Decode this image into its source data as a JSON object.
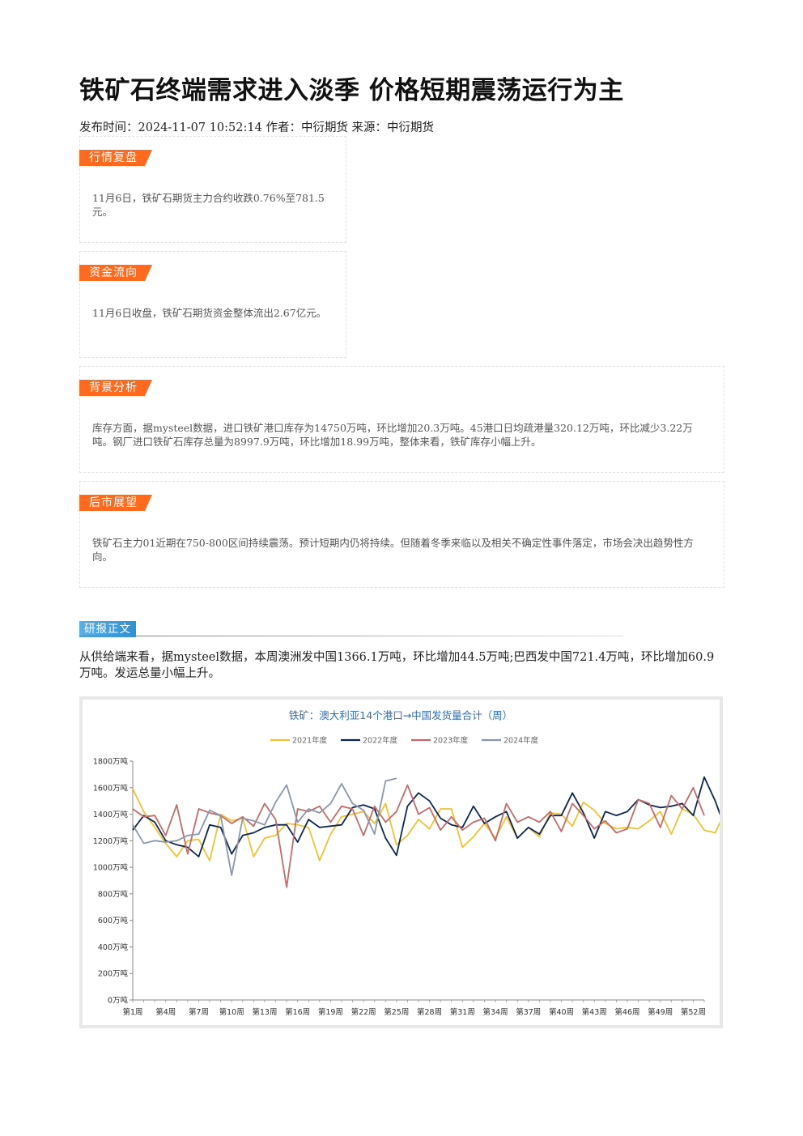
{
  "article": {
    "title": "铁矿石终端需求进入淡季 价格短期震荡运行为主",
    "meta": "发布时间：2024-11-07 10:52:14 作者：中衍期货 来源：中衍期货"
  },
  "sections": {
    "market": {
      "tag": "行情复盘",
      "text": "11月6日，铁矿石期货主力合约收跌0.76%至781.5元。"
    },
    "fund": {
      "tag": "资金流向",
      "text": "11月6日收盘，铁矿石期货资金整体流出2.67亿元。"
    },
    "background": {
      "tag": "背景分析",
      "text": "库存方面，据mysteel数据，进口铁矿港口库存为14750万吨，环比增加20.3万吨。45港口日均疏港量320.12万吨，环比减少3.22万吨。钢厂进口铁矿石库存总量为8997.9万吨，环比增加18.99万吨，整体来看，铁矿库存小幅上升。"
    },
    "outlook": {
      "tag": "后市展望",
      "text": "铁矿石主力01近期在750-800区间持续震荡。预计短期内仍将持续。但随着冬季来临以及相关不确定性事件落定，市场会决出趋势性方向。"
    }
  },
  "report": {
    "tag": "研报正文",
    "text": "从供给端来看，据mysteel数据，本周澳洲发中国1366.1万吨，环比增加44.5万吨;巴西发中国721.4万吨，环比增加60.9万吨。发运总量小幅上升。"
  },
  "chart_data": {
    "type": "line",
    "title": "铁矿：澳大利亚14个港口→中国发货量合计（周）",
    "yunit": "万吨",
    "ylim": [
      0,
      1800
    ],
    "yticks": [
      "0万吨",
      "200万吨",
      "400万吨",
      "600万吨",
      "800万吨",
      "1000万吨",
      "1200万吨",
      "1400万吨",
      "1600万吨",
      "1800万吨"
    ],
    "ytick_values": [
      0,
      200,
      400,
      600,
      800,
      1000,
      1200,
      1400,
      1600,
      1800
    ],
    "xticks": [
      "第1周",
      "第4周",
      "第7周",
      "第10周",
      "第13周",
      "第16周",
      "第19周",
      "第22周",
      "第25周",
      "第28周",
      "第31周",
      "第34周",
      "第37周",
      "第40周",
      "第43周",
      "第46周",
      "第49周",
      "第52周"
    ],
    "xtick_weeks": [
      1,
      4,
      7,
      10,
      13,
      16,
      19,
      22,
      25,
      28,
      31,
      34,
      37,
      40,
      43,
      46,
      49,
      52
    ],
    "xlim": [
      1,
      53
    ],
    "legend_position": "top-center",
    "series": [
      {
        "name": "2021年度",
        "color": "#f2c233",
        "values": [
          1590,
          1420,
          1300,
          1180,
          1080,
          1200,
          1210,
          1050,
          1400,
          1350,
          1370,
          1080,
          1220,
          1240,
          1330,
          1320,
          1300,
          1050,
          1250,
          1380,
          1400,
          1420,
          1330,
          1480,
          1170,
          1240,
          1360,
          1290,
          1440,
          1440,
          1150,
          1230,
          1330,
          1220,
          1380,
          1220,
          1300,
          1230,
          1410,
          1400,
          1310,
          1490,
          1430,
          1330,
          1290,
          1300,
          1290,
          1350,
          1420,
          1250,
          1440,
          1400,
          1280,
          1260,
          1440,
          1570
        ]
      },
      {
        "name": "2022年度",
        "color": "#0d2652",
        "values": [
          1280,
          1390,
          1340,
          1200,
          1170,
          1150,
          1080,
          1320,
          1300,
          1100,
          1240,
          1260,
          1300,
          1320,
          1320,
          1190,
          1360,
          1300,
          1310,
          1320,
          1450,
          1470,
          1440,
          1220,
          1090,
          1460,
          1560,
          1500,
          1370,
          1320,
          1300,
          1460,
          1330,
          1380,
          1420,
          1220,
          1300,
          1250,
          1390,
          1390,
          1560,
          1410,
          1220,
          1420,
          1390,
          1420,
          1510,
          1470,
          1450,
          1460,
          1480,
          1390,
          1680,
          1500,
          1270
        ]
      },
      {
        "name": "2023年度",
        "color": "#c46b6b",
        "values": [
          1440,
          1380,
          1390,
          1240,
          1470,
          1100,
          1440,
          1410,
          1390,
          1330,
          1380,
          1310,
          1480,
          1360,
          850,
          1440,
          1420,
          1460,
          1340,
          1460,
          1440,
          1240,
          1460,
          1340,
          1420,
          1620,
          1400,
          1450,
          1280,
          1380,
          1280,
          1340,
          1370,
          1200,
          1480,
          1340,
          1380,
          1340,
          1420,
          1270,
          1480,
          1390,
          1290,
          1350,
          1260,
          1290,
          1510,
          1480,
          1300,
          1540,
          1440,
          1600,
          1390
        ]
      },
      {
        "name": "2024年度",
        "color": "#8a97ab",
        "values": [
          1320,
          1180,
          1200,
          1190,
          1200,
          1240,
          1250,
          1430,
          1390,
          940,
          1370,
          1350,
          1320,
          1490,
          1620,
          1340,
          1440,
          1410,
          1480,
          1630,
          1480,
          1430,
          1250,
          1650,
          1670
        ]
      }
    ]
  }
}
